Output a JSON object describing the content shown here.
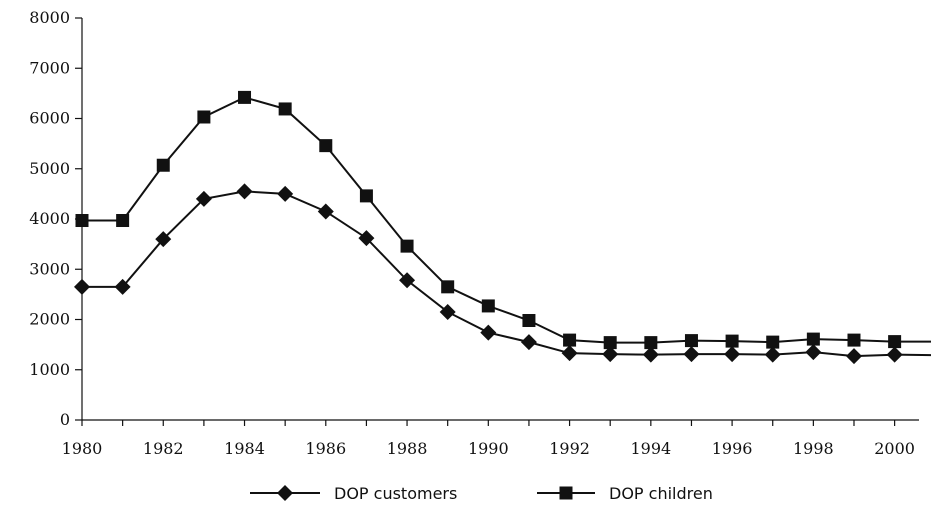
{
  "chart_data": {
    "type": "line",
    "x": [
      1980,
      1981,
      1982,
      1983,
      1984,
      1985,
      1986,
      1987,
      1988,
      1989,
      1990,
      1991,
      1992,
      1993,
      1994,
      1995,
      1996,
      1997,
      1998,
      1999,
      2000,
      2001
    ],
    "x_ticks": [
      "1980",
      "1982",
      "1984",
      "1986",
      "1988",
      "1990",
      "1992",
      "1994",
      "1996",
      "1998",
      "2000"
    ],
    "y_ticks": [
      "0",
      "1000",
      "2000",
      "3000",
      "4000",
      "5000",
      "6000",
      "7000",
      "8000"
    ],
    "ylim": [
      0,
      8000
    ],
    "xlim": [
      1980,
      2001
    ],
    "grid": false,
    "legend_position": "bottom",
    "series": [
      {
        "name": "DOP customers",
        "marker": "diamond",
        "values": [
          2650,
          2650,
          3600,
          4400,
          4550,
          4500,
          4150,
          3620,
          2780,
          2150,
          1740,
          1550,
          1330,
          1310,
          1300,
          1310,
          1310,
          1300,
          1350,
          1270,
          1300,
          1290
        ]
      },
      {
        "name": "DOP children",
        "marker": "square",
        "values": [
          3970,
          3970,
          5070,
          6030,
          6420,
          6190,
          5460,
          4460,
          3460,
          2650,
          2270,
          1980,
          1590,
          1540,
          1540,
          1580,
          1570,
          1550,
          1610,
          1590,
          1560,
          1560
        ]
      }
    ],
    "colors": {
      "line": "#111111",
      "marker": "#111111",
      "axis": "#111111"
    }
  }
}
